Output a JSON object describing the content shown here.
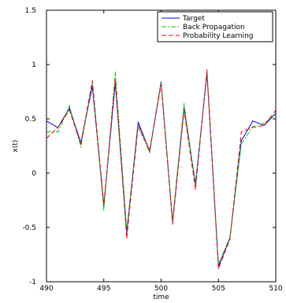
{
  "chart_data": {
    "type": "line",
    "xlabel": "time",
    "ylabel": "x(t)",
    "xlim": [
      490,
      510
    ],
    "ylim": [
      -1,
      1.5
    ],
    "xticks": [
      490,
      495,
      500,
      505,
      510
    ],
    "yticks": [
      -1,
      -0.5,
      0,
      0.5,
      1,
      1.5
    ],
    "xtick_labels": [
      "490",
      "495",
      "500",
      "505",
      "510"
    ],
    "ytick_labels": [
      "-1",
      "-0.5",
      "0",
      "0.5",
      "1",
      "1.5"
    ],
    "grid": false,
    "legend_position": "top-right",
    "x": [
      490,
      491,
      492,
      493,
      494,
      495,
      496,
      497,
      498,
      499,
      500,
      501,
      502,
      503,
      504,
      505,
      506,
      507,
      508,
      509,
      510
    ],
    "series": [
      {
        "name": "Target",
        "color": "#0000ff",
        "dash": "solid",
        "values": [
          0.48,
          0.42,
          0.6,
          0.28,
          0.8,
          -0.3,
          0.83,
          -0.55,
          0.47,
          0.2,
          0.84,
          -0.45,
          0.6,
          -0.1,
          0.92,
          -0.86,
          -0.6,
          0.3,
          0.48,
          0.44,
          0.55
        ]
      },
      {
        "name": "Back Propagation",
        "color": "#00cc00",
        "dash": "dashdot",
        "values": [
          0.38,
          0.38,
          0.62,
          0.24,
          0.84,
          -0.34,
          0.93,
          -0.52,
          0.43,
          0.19,
          0.83,
          -0.44,
          0.64,
          -0.12,
          0.94,
          -0.84,
          -0.59,
          0.27,
          0.43,
          0.46,
          0.55
        ]
      },
      {
        "name": "Probability Learning",
        "color": "#ff0000",
        "dash": "dashed",
        "values": [
          0.32,
          0.42,
          0.58,
          0.27,
          0.85,
          -0.29,
          0.86,
          -0.6,
          0.44,
          0.21,
          0.82,
          -0.47,
          0.58,
          -0.15,
          0.95,
          -0.88,
          -0.61,
          0.38,
          0.42,
          0.44,
          0.58
        ]
      }
    ]
  }
}
